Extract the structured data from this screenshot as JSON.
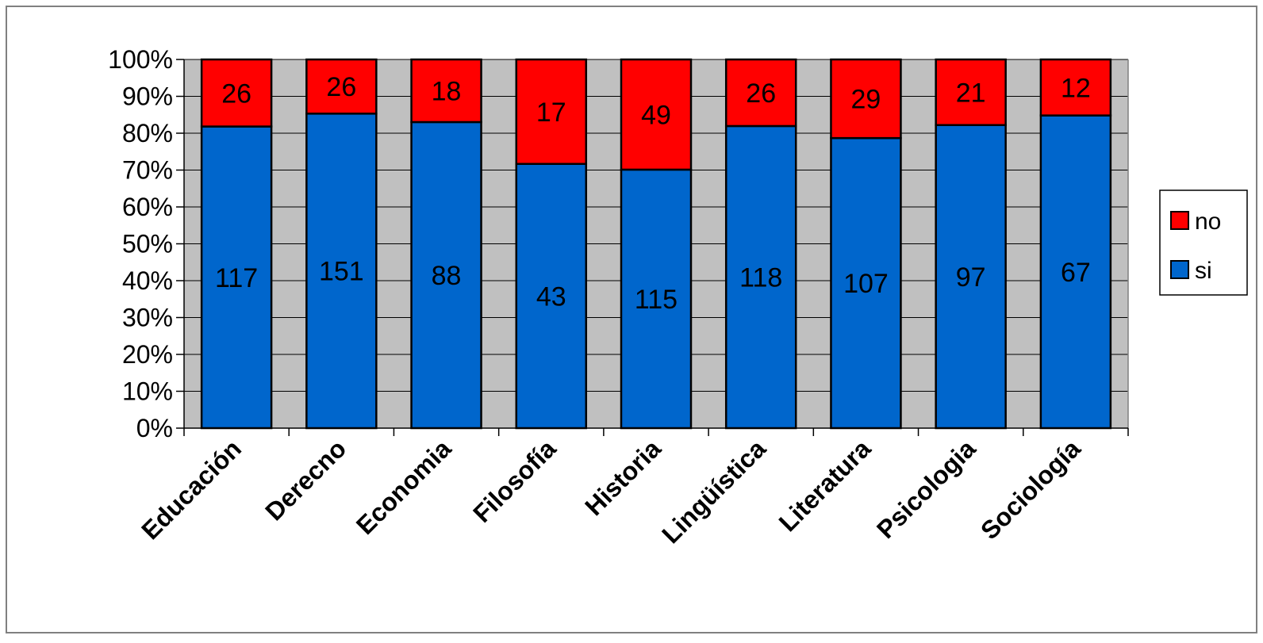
{
  "chart_data": {
    "type": "bar",
    "stacked": "percent",
    "categories": [
      "Educación",
      "Derecno",
      "Economia",
      "Filosofía",
      "Historia",
      "Lingüística",
      "Literatura",
      "Psicologia",
      "Sociología"
    ],
    "series": [
      {
        "name": "si",
        "color": "#0066CC",
        "values": [
          117,
          151,
          88,
          43,
          115,
          118,
          107,
          97,
          67
        ]
      },
      {
        "name": "no",
        "color": "#FF0000",
        "values": [
          26,
          26,
          18,
          17,
          49,
          26,
          29,
          21,
          12
        ]
      }
    ],
    "y_ticks": [
      "0%",
      "10%",
      "20%",
      "30%",
      "40%",
      "50%",
      "60%",
      "70%",
      "80%",
      "90%",
      "100%"
    ],
    "ylim": [
      0,
      100
    ],
    "title": "",
    "xlabel": "",
    "ylabel": "",
    "grid": true,
    "plot_background": "#C0C0C0",
    "legend": {
      "position": "right",
      "order": [
        "no",
        "si"
      ]
    }
  }
}
